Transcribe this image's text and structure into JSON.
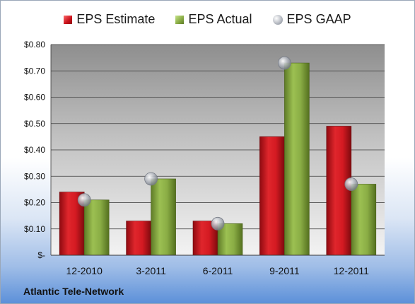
{
  "company": "Atlantic Tele-Network",
  "chart_data": {
    "type": "bar",
    "categories": [
      "12-2010",
      "3-2011",
      "6-2011",
      "9-2011",
      "12-2011"
    ],
    "series": [
      {
        "name": "EPS Estimate",
        "type": "bar",
        "color": "#c8101a",
        "values": [
          0.24,
          0.13,
          0.13,
          0.45,
          0.49
        ]
      },
      {
        "name": "EPS Actual",
        "type": "bar",
        "color": "#86a942",
        "values": [
          0.21,
          0.29,
          0.12,
          0.73,
          0.27
        ]
      },
      {
        "name": "EPS GAAP",
        "type": "scatter",
        "color": "#a9adb5",
        "values": [
          0.21,
          0.29,
          0.12,
          0.73,
          0.27
        ]
      }
    ],
    "ylim": [
      0,
      0.8
    ],
    "yticks": [
      0,
      0.1,
      0.2,
      0.3,
      0.4,
      0.5,
      0.6,
      0.7,
      0.8
    ],
    "ytick_labels": [
      "$-",
      "$0.10",
      "$0.20",
      "$0.30",
      "$0.40",
      "$0.50",
      "$0.60",
      "$0.70",
      "$0.80"
    ],
    "grid": true,
    "legend_position": "top"
  }
}
